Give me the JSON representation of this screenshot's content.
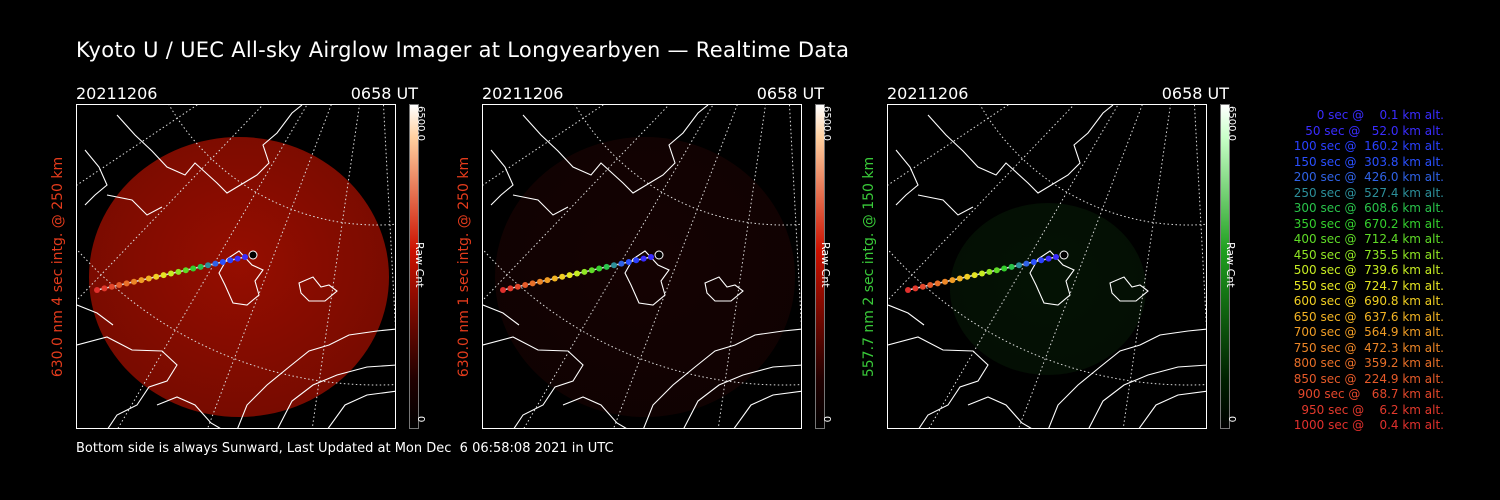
{
  "title": "Kyoto U / UEC All-sky Airglow Imager at Longyearbyen — Realtime Data",
  "footer": "Bottom side is always Sunward, Last Updated at Mon Dec  6 06:58:08 2021 in UTC",
  "panels": [
    {
      "date": "20211206",
      "time": "0658 UT",
      "ylabel": "630.0 nm 4 sec intg. @ 250 km",
      "label_color": "#e33b1c",
      "cbar_max": "6500.0",
      "cbar_min": "0",
      "cbar_label": "Raw Cnt",
      "tint": "#b01000",
      "brightness": 0.85
    },
    {
      "date": "20211206",
      "time": "0658 UT",
      "ylabel": "630.0 nm 1 sec intg. @ 250 km",
      "label_color": "#e33b1c",
      "cbar_max": "6500.0",
      "cbar_min": "0",
      "cbar_label": "Raw Cnt",
      "tint": "#3a0605",
      "brightness": 0.35
    },
    {
      "date": "20211206",
      "time": "0658 UT",
      "ylabel": "557.7 nm 2 sec intg. @ 150 km",
      "label_color": "#39c939",
      "cbar_max": "6500.0",
      "cbar_min": "0",
      "cbar_label": "Raw Cnt",
      "tint": "#0b2e0b",
      "brightness": 0.4
    }
  ],
  "legend": [
    {
      "text": "0 sec @    0.1 km alt.",
      "color": "#3a2cff"
    },
    {
      "text": "50 sec @   52.0 km alt.",
      "color": "#3a2cff"
    },
    {
      "text": "100 sec @  160.2 km alt.",
      "color": "#2a40ff"
    },
    {
      "text": "150 sec @  303.8 km alt.",
      "color": "#2a50ff"
    },
    {
      "text": "200 sec @  426.0 km alt.",
      "color": "#2f62e6"
    },
    {
      "text": "250 sec @  527.4 km alt.",
      "color": "#2c8f9a"
    },
    {
      "text": "300 sec @  608.6 km alt.",
      "color": "#29c34a"
    },
    {
      "text": "350 sec @  670.2 km alt.",
      "color": "#34d02d"
    },
    {
      "text": "400 sec @  712.4 km alt.",
      "color": "#5fdb27"
    },
    {
      "text": "450 sec @  735.5 km alt.",
      "color": "#8fe523"
    },
    {
      "text": "500 sec @  739.6 km alt.",
      "color": "#c6ec22"
    },
    {
      "text": "550 sec @  724.7 km alt.",
      "color": "#e5e522"
    },
    {
      "text": "600 sec @  690.8 km alt.",
      "color": "#f1cf22"
    },
    {
      "text": "650 sec @  637.6 km alt.",
      "color": "#f2b323"
    },
    {
      "text": "700 sec @  564.9 km alt.",
      "color": "#ef9c25"
    },
    {
      "text": "750 sec @  472.3 km alt.",
      "color": "#eb8526"
    },
    {
      "text": "800 sec @  359.2 km alt.",
      "color": "#e86f28"
    },
    {
      "text": "850 sec @  224.9 km alt.",
      "color": "#e55a29"
    },
    {
      "text": "900 sec @   68.7 km alt.",
      "color": "#e3472b"
    },
    {
      "text": "950 sec @    6.2 km alt.",
      "color": "#e2392c"
    },
    {
      "text": "1000 sec @    0.4 km alt.",
      "color": "#e0302d"
    }
  ]
}
